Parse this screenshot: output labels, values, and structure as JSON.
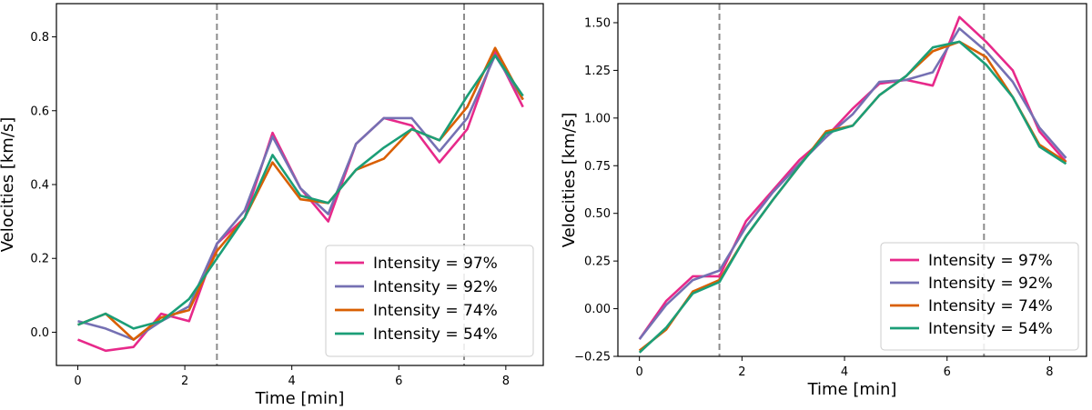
{
  "chart_data": [
    {
      "type": "line",
      "title": "",
      "xlabel": "Time [min]",
      "ylabel": "Velocities [km/s]",
      "xlim": [
        -0.4,
        8.7
      ],
      "ylim": [
        -0.09,
        0.89
      ],
      "xticks": [
        0,
        2,
        4,
        6,
        8
      ],
      "xtick_labels": [
        "0",
        "2",
        "4",
        "6",
        "8"
      ],
      "yticks": [
        0.0,
        0.2,
        0.4,
        0.6,
        0.8
      ],
      "ytick_labels": [
        "0.0",
        "0.2",
        "0.4",
        "0.6",
        "0.8"
      ],
      "vlines": [
        2.6,
        7.22
      ],
      "legend_position": "lower-right",
      "x": [
        0,
        0.52,
        1.04,
        1.56,
        2.08,
        2.6,
        3.12,
        3.64,
        4.16,
        4.68,
        5.2,
        5.72,
        6.24,
        6.76,
        7.28,
        7.8,
        8.32
      ],
      "series": [
        {
          "name": "Intensity = 97%",
          "color": "#e7298a",
          "values": [
            -0.02,
            -0.05,
            -0.04,
            0.05,
            0.03,
            0.24,
            0.31,
            0.54,
            0.39,
            0.3,
            0.51,
            0.58,
            0.56,
            0.46,
            0.55,
            0.76,
            0.61
          ]
        },
        {
          "name": "Intensity = 92%",
          "color": "#7570b3",
          "values": [
            0.03,
            0.01,
            -0.02,
            0.03,
            0.07,
            0.24,
            0.33,
            0.53,
            0.39,
            0.32,
            0.51,
            0.58,
            0.58,
            0.49,
            0.58,
            0.75,
            0.63
          ]
        },
        {
          "name": "Intensity = 74%",
          "color": "#d95f02",
          "values": [
            0.02,
            0.05,
            -0.02,
            0.04,
            0.06,
            0.22,
            0.31,
            0.46,
            0.36,
            0.35,
            0.44,
            0.47,
            0.55,
            0.52,
            0.61,
            0.77,
            0.63
          ]
        },
        {
          "name": "Intensity = 54%",
          "color": "#1b9e77",
          "values": [
            0.02,
            0.05,
            0.01,
            0.03,
            0.09,
            0.2,
            0.31,
            0.48,
            0.37,
            0.35,
            0.44,
            0.5,
            0.55,
            0.52,
            0.64,
            0.75,
            0.64
          ]
        }
      ]
    },
    {
      "type": "line",
      "title": "",
      "xlabel": "Time [min]",
      "ylabel": "Velocities [km/s]",
      "xlim": [
        -0.42,
        8.72
      ],
      "ylim": [
        -0.25,
        1.6
      ],
      "xticks": [
        0,
        2,
        4,
        6,
        8
      ],
      "xtick_labels": [
        "0",
        "2",
        "4",
        "6",
        "8"
      ],
      "yticks": [
        -0.25,
        0.0,
        0.25,
        0.5,
        0.75,
        1.0,
        1.25,
        1.5
      ],
      "ytick_labels": [
        "−0.25",
        "0.00",
        "0.25",
        "0.50",
        "0.75",
        "1.00",
        "1.25",
        "1.50"
      ],
      "vlines": [
        1.56,
        6.72
      ],
      "legend_position": "lower-right",
      "x": [
        0,
        0.52,
        1.04,
        1.56,
        2.08,
        2.6,
        3.12,
        3.64,
        4.16,
        4.68,
        5.2,
        5.72,
        6.24,
        6.76,
        7.28,
        7.8,
        8.32
      ],
      "series": [
        {
          "name": "Intensity = 97%",
          "color": "#e7298a",
          "values": [
            -0.16,
            0.04,
            0.17,
            0.17,
            0.46,
            0.62,
            0.78,
            0.9,
            1.05,
            1.18,
            1.2,
            1.17,
            1.53,
            1.4,
            1.25,
            0.93,
            0.77
          ]
        },
        {
          "name": "Intensity = 92%",
          "color": "#7570b3",
          "values": [
            -0.16,
            0.02,
            0.15,
            0.2,
            0.43,
            0.61,
            0.76,
            0.9,
            1.02,
            1.19,
            1.2,
            1.24,
            1.47,
            1.35,
            1.19,
            0.95,
            0.79
          ]
        },
        {
          "name": "Intensity = 74%",
          "color": "#d95f02",
          "values": [
            -0.22,
            -0.11,
            0.09,
            0.15,
            0.38,
            0.57,
            0.75,
            0.93,
            0.96,
            1.12,
            1.22,
            1.35,
            1.4,
            1.32,
            1.11,
            0.86,
            0.77
          ]
        },
        {
          "name": "Intensity = 54%",
          "color": "#1b9e77",
          "values": [
            -0.23,
            -0.1,
            0.08,
            0.14,
            0.38,
            0.57,
            0.75,
            0.92,
            0.96,
            1.12,
            1.22,
            1.37,
            1.4,
            1.28,
            1.11,
            0.85,
            0.76
          ]
        }
      ]
    }
  ]
}
